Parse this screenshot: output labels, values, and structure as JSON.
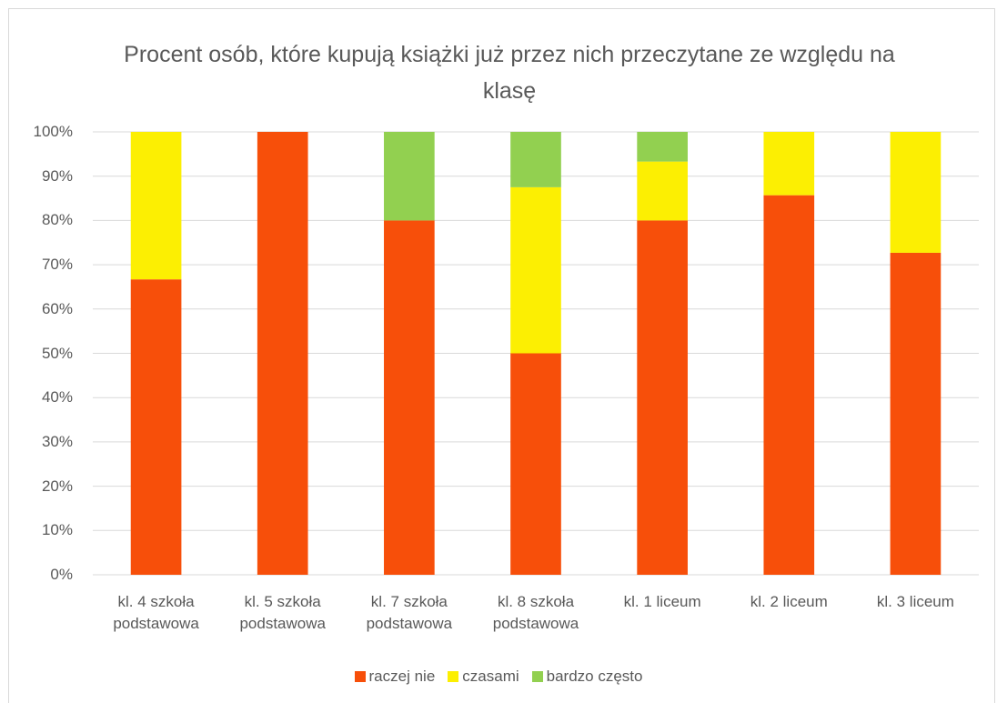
{
  "chart_data": {
    "type": "stacked_bar",
    "title": "Procent osób, które kupują książki już przez nich przeczytane ze względu na klasę",
    "categories": [
      "kl. 4 szkoła podstawowa",
      "kl. 5 szkoła podstawowa",
      "kl. 7 szkoła podstawowa",
      "kl. 8 szkoła podstawowa",
      "kl. 1 liceum",
      "kl. 2 liceum",
      "kl. 3 liceum"
    ],
    "series": [
      {
        "name": "raczej nie",
        "color": "#f74f0a",
        "values": [
          66.7,
          100,
          80,
          50,
          80,
          85.7,
          72.7
        ]
      },
      {
        "name": "czasami",
        "color": "#fcef02",
        "values": [
          33.3,
          0,
          0,
          37.5,
          13.3,
          14.3,
          27.3
        ]
      },
      {
        "name": "bardzo często",
        "color": "#92d050",
        "values": [
          0,
          0,
          20,
          12.5,
          6.7,
          0,
          0
        ]
      }
    ],
    "ylim": [
      0,
      100
    ],
    "yticks": [
      {
        "value": 0,
        "label": "0%"
      },
      {
        "value": 10,
        "label": "10%"
      },
      {
        "value": 20,
        "label": "20%"
      },
      {
        "value": 30,
        "label": "30%"
      },
      {
        "value": 40,
        "label": "40%"
      },
      {
        "value": 50,
        "label": "50%"
      },
      {
        "value": 60,
        "label": "60%"
      },
      {
        "value": 70,
        "label": "70%"
      },
      {
        "value": 80,
        "label": "80%"
      },
      {
        "value": 90,
        "label": "90%"
      },
      {
        "value": 100,
        "label": "100%"
      }
    ],
    "grid": true,
    "legend": "bottom"
  }
}
